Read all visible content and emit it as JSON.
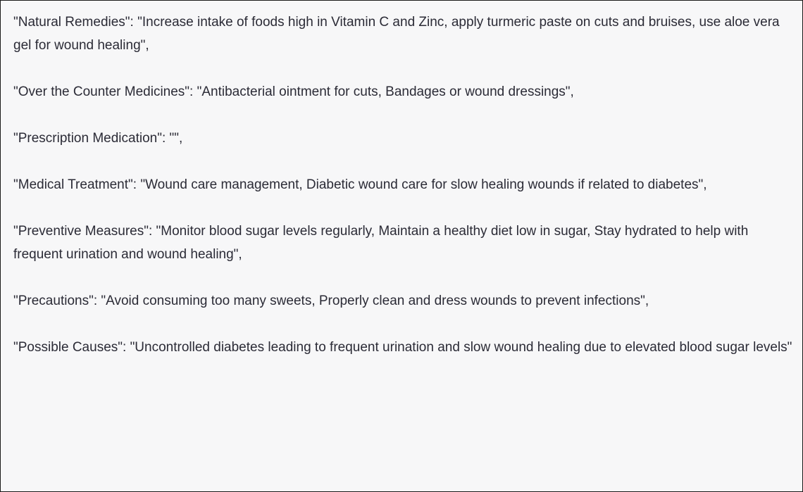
{
  "paragraphs": [
    "\"Natural Remedies\": \"Increase intake of foods high in Vitamin C and Zinc, apply turmeric paste on cuts and bruises, use aloe vera gel for wound healing\",",
    "\"Over the Counter Medicines\": \"Antibacterial ointment for cuts, Bandages or wound dressings\",",
    "\"Prescription Medication\": \"\",",
    "\"Medical Treatment\": \"Wound care management, Diabetic wound care for slow healing wounds if related to diabetes\",",
    "\"Preventive Measures\": \"Monitor blood sugar levels regularly, Maintain a healthy diet low in sugar, Stay hydrated to help with frequent urination and wound healing\",",
    "\"Precautions\": \"Avoid consuming too many sweets, Properly clean and dress wounds to prevent infections\",",
    "\"Possible Causes\": \"Uncontrolled diabetes leading to frequent urination and slow wound healing due to elevated blood sugar levels\""
  ]
}
